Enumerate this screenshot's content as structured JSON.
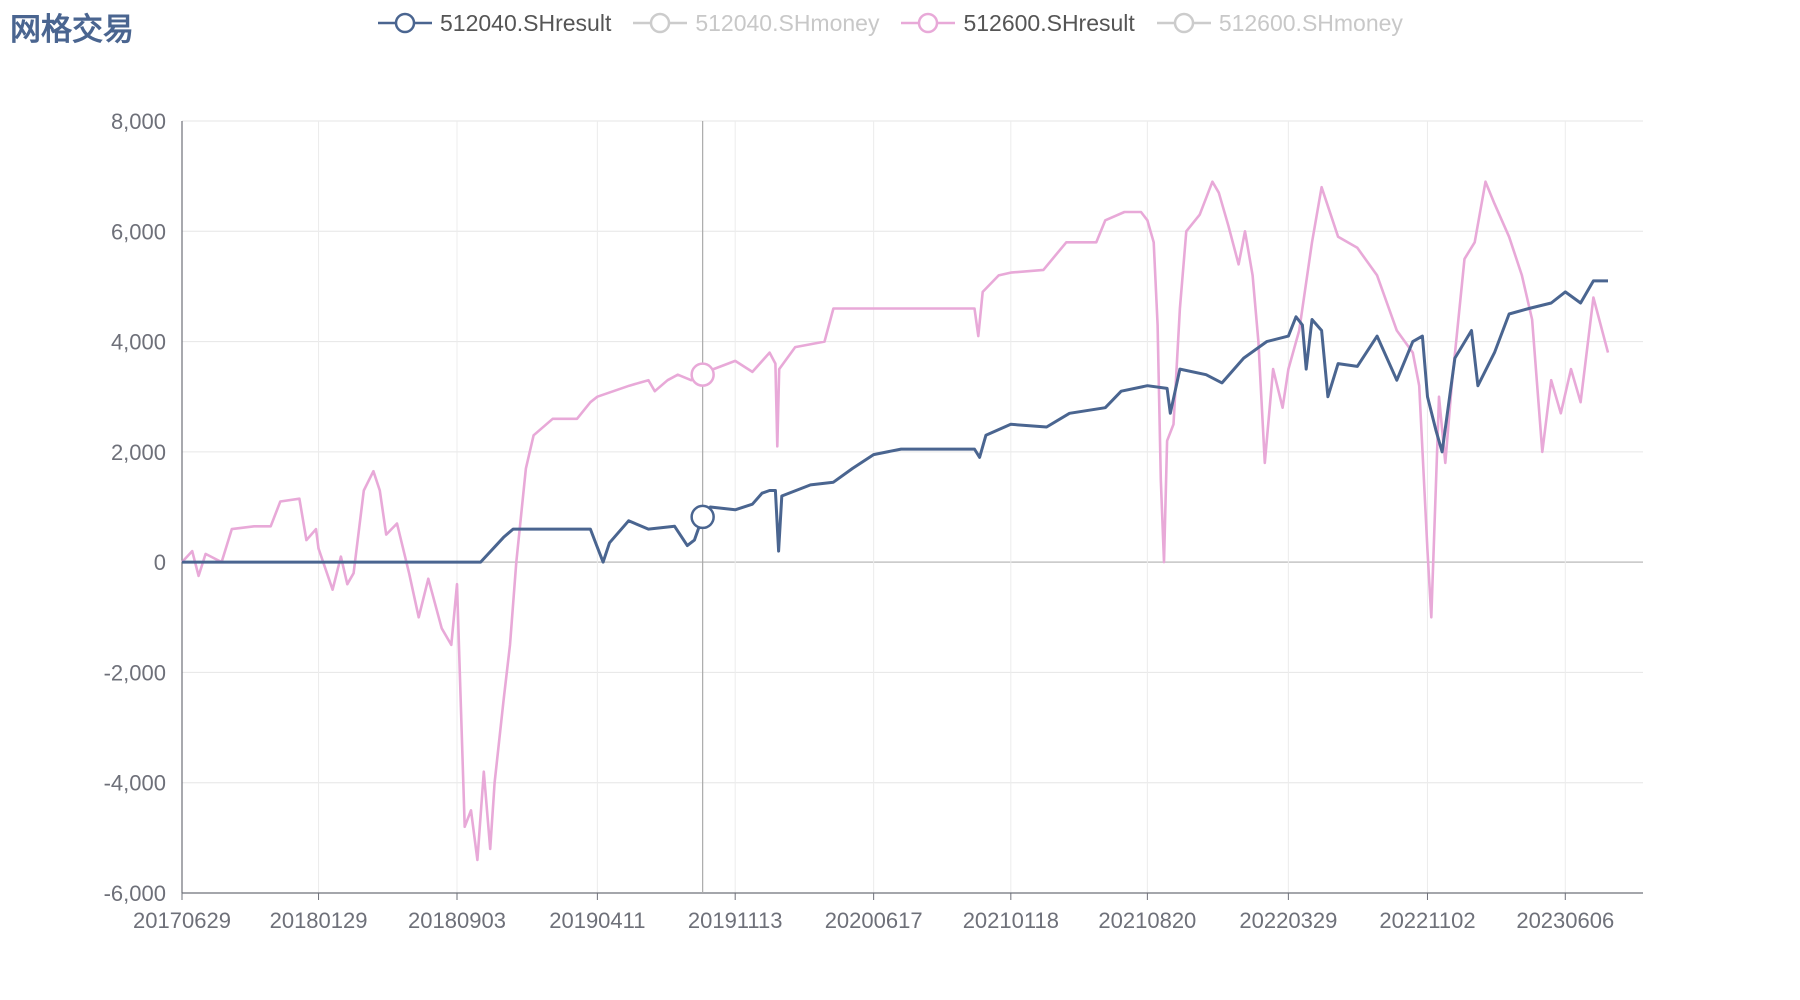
{
  "title": "网格交易",
  "legend": [
    {
      "name": "512040.SHresult",
      "color": "#4a6590",
      "active": true
    },
    {
      "name": "512040.SHmoney",
      "color": "#cccccc",
      "active": false
    },
    {
      "name": "512600.SHresult",
      "color": "#e8a9d8",
      "active": true
    },
    {
      "name": "512600.SHmoney",
      "color": "#cccccc",
      "active": false
    }
  ],
  "chart_data": {
    "type": "line",
    "title": "网格交易",
    "xlabel": "",
    "ylabel": "",
    "categories": [
      "20170629",
      "20180129",
      "20180903",
      "20190411",
      "20191113",
      "20200617",
      "20210118",
      "20210820",
      "20220329",
      "20221102",
      "20230606"
    ],
    "ylim": [
      -6000,
      8000
    ],
    "yticks": [
      "8,000",
      "6,000",
      "4,000",
      "2,000",
      "0",
      "-2,000",
      "-4,000",
      "-6,000"
    ],
    "grid": true,
    "legend_position": "top",
    "tooltip_category": "20190923",
    "series": [
      {
        "name": "512040.SHresult",
        "color": "#4a6590",
        "points": [
          [
            "20170629",
            0
          ],
          [
            "20180903",
            0
          ],
          [
            "20181010",
            0
          ],
          [
            "20181115",
            450
          ],
          [
            "20181130",
            600
          ],
          [
            "20190331",
            600
          ],
          [
            "20190410",
            300
          ],
          [
            "20190420",
            0
          ],
          [
            "20190430",
            350
          ],
          [
            "20190530",
            750
          ],
          [
            "20190630",
            600
          ],
          [
            "20190810",
            650
          ],
          [
            "20190830",
            300
          ],
          [
            "20190910",
            400
          ],
          [
            "20190923",
            820
          ],
          [
            "20191005",
            1000
          ],
          [
            "20191113",
            950
          ],
          [
            "20191210",
            1050
          ],
          [
            "20191225",
            1250
          ],
          [
            "20200106",
            1300
          ],
          [
            "20200115",
            1300
          ],
          [
            "20200120",
            200
          ],
          [
            "20200125",
            1200
          ],
          [
            "20200310",
            1400
          ],
          [
            "20200415",
            1450
          ],
          [
            "20200515",
            1700
          ],
          [
            "20200617",
            1950
          ],
          [
            "20200730",
            2050
          ],
          [
            "20201010",
            2050
          ],
          [
            "20201110",
            2050
          ],
          [
            "20201122",
            2050
          ],
          [
            "20201130",
            1900
          ],
          [
            "20201210",
            2300
          ],
          [
            "20210118",
            2500
          ],
          [
            "20210315",
            2450
          ],
          [
            "20210420",
            2700
          ],
          [
            "20210615",
            2800
          ],
          [
            "20210710",
            3100
          ],
          [
            "20210820",
            3200
          ],
          [
            "20210920",
            3150
          ],
          [
            "20210925",
            2700
          ],
          [
            "20211010",
            3500
          ],
          [
            "20211120",
            3400
          ],
          [
            "20211215",
            3250
          ],
          [
            "20220118",
            3700
          ],
          [
            "20220223",
            4000
          ],
          [
            "20220329",
            4100
          ],
          [
            "20220410",
            4450
          ],
          [
            "20220420",
            4300
          ],
          [
            "20220426",
            3500
          ],
          [
            "20220505",
            4400
          ],
          [
            "20220520",
            4200
          ],
          [
            "20220530",
            3000
          ],
          [
            "20220615",
            3600
          ],
          [
            "20220715",
            3550
          ],
          [
            "20220815",
            4100
          ],
          [
            "20220915",
            3300
          ],
          [
            "20221010",
            4000
          ],
          [
            "20221025",
            4100
          ],
          [
            "20221102",
            3000
          ],
          [
            "20221115",
            2400
          ],
          [
            "20221125",
            2000
          ],
          [
            "20221215",
            3700
          ],
          [
            "20230110",
            4200
          ],
          [
            "20230120",
            3200
          ],
          [
            "20230215",
            3800
          ],
          [
            "20230310",
            4500
          ],
          [
            "20230410",
            4600
          ],
          [
            "20230515",
            4700
          ],
          [
            "20230606",
            4900
          ],
          [
            "20230630",
            4700
          ],
          [
            "20230720",
            5100
          ],
          [
            "20230812",
            5100
          ]
        ]
      },
      {
        "name": "512600.SHresult",
        "color": "#e8a9d8",
        "points": [
          [
            "20170629",
            0
          ],
          [
            "20170715",
            200
          ],
          [
            "20170725",
            -250
          ],
          [
            "20170805",
            150
          ],
          [
            "20170830",
            0
          ],
          [
            "20170915",
            600
          ],
          [
            "20171020",
            650
          ],
          [
            "20171115",
            650
          ],
          [
            "20171130",
            1100
          ],
          [
            "20171230",
            1150
          ],
          [
            "20180110",
            400
          ],
          [
            "20180125",
            600
          ],
          [
            "20180129",
            250
          ],
          [
            "20180220",
            -500
          ],
          [
            "20180305",
            100
          ],
          [
            "20180315",
            -400
          ],
          [
            "20180325",
            -200
          ],
          [
            "20180410",
            1300
          ],
          [
            "20180425",
            1650
          ],
          [
            "20180505",
            1300
          ],
          [
            "20180515",
            500
          ],
          [
            "20180601",
            700
          ],
          [
            "20180620",
            -200
          ],
          [
            "20180705",
            -1000
          ],
          [
            "20180720",
            -300
          ],
          [
            "20180810",
            -1200
          ],
          [
            "20180825",
            -1500
          ],
          [
            "20180903",
            -400
          ],
          [
            "20180915",
            -4800
          ],
          [
            "20180925",
            -4500
          ],
          [
            "20181005",
            -5400
          ],
          [
            "20181015",
            -3800
          ],
          [
            "20181025",
            -5200
          ],
          [
            "20181101",
            -4000
          ],
          [
            "20181115",
            -2500
          ],
          [
            "20181125",
            -1500
          ],
          [
            "20181205",
            0
          ],
          [
            "20181220",
            1700
          ],
          [
            "20190101",
            2300
          ],
          [
            "20190131",
            2600
          ],
          [
            "20190310",
            2600
          ],
          [
            "20190331",
            2900
          ],
          [
            "20190411",
            3000
          ],
          [
            "20190531",
            3200
          ],
          [
            "20190630",
            3300
          ],
          [
            "20190710",
            3100
          ],
          [
            "20190730",
            3300
          ],
          [
            "20190815",
            3400
          ],
          [
            "20190905",
            3300
          ],
          [
            "20190923",
            3400
          ],
          [
            "20191010",
            3500
          ],
          [
            "20191113",
            3650
          ],
          [
            "20191210",
            3450
          ],
          [
            "20200106",
            3800
          ],
          [
            "20200115",
            3600
          ],
          [
            "20200118",
            2100
          ],
          [
            "20200121",
            3500
          ],
          [
            "20200215",
            3900
          ],
          [
            "20200401",
            4000
          ],
          [
            "20200415",
            4600
          ],
          [
            "20200617",
            4600
          ],
          [
            "20201122",
            4600
          ],
          [
            "20201128",
            4100
          ],
          [
            "20201205",
            4900
          ],
          [
            "20201230",
            5200
          ],
          [
            "20210118",
            5250
          ],
          [
            "20210310",
            5300
          ],
          [
            "20210415",
            5800
          ],
          [
            "20210601",
            5800
          ],
          [
            "20210615",
            6200
          ],
          [
            "20210715",
            6350
          ],
          [
            "20210810",
            6350
          ],
          [
            "20210820",
            6200
          ],
          [
            "20210830",
            5800
          ],
          [
            "20210905",
            4300
          ],
          [
            "20210910",
            1500
          ],
          [
            "20210915",
            0
          ],
          [
            "20210920",
            2200
          ],
          [
            "20210930",
            2500
          ],
          [
            "20211010",
            4600
          ],
          [
            "20211020",
            6000
          ],
          [
            "20211110",
            6300
          ],
          [
            "20211130",
            6900
          ],
          [
            "20211210",
            6700
          ],
          [
            "20211225",
            6100
          ],
          [
            "20220110",
            5400
          ],
          [
            "20220120",
            6000
          ],
          [
            "20220201",
            5200
          ],
          [
            "20220210",
            4000
          ],
          [
            "20220220",
            1800
          ],
          [
            "20220305",
            3500
          ],
          [
            "20220320",
            2800
          ],
          [
            "20220329",
            3500
          ],
          [
            "20220415",
            4200
          ],
          [
            "20220505",
            5800
          ],
          [
            "20220520",
            6800
          ],
          [
            "20220615",
            5900
          ],
          [
            "20220715",
            5700
          ],
          [
            "20220815",
            5200
          ],
          [
            "20220915",
            4200
          ],
          [
            "20221010",
            3800
          ],
          [
            "20221020",
            3200
          ],
          [
            "20221102",
            200
          ],
          [
            "20221108",
            -1000
          ],
          [
            "20221120",
            3000
          ],
          [
            "20221130",
            1800
          ],
          [
            "20221210",
            3200
          ],
          [
            "20221230",
            5500
          ],
          [
            "20230115",
            5800
          ],
          [
            "20230201",
            6900
          ],
          [
            "20230215",
            6500
          ],
          [
            "20230310",
            5900
          ],
          [
            "20230330",
            5200
          ],
          [
            "20230415",
            4400
          ],
          [
            "20230501",
            2000
          ],
          [
            "20230515",
            3300
          ],
          [
            "20230530",
            2700
          ],
          [
            "20230615",
            3500
          ],
          [
            "20230630",
            2900
          ],
          [
            "20230720",
            4800
          ],
          [
            "20230812",
            3800
          ]
        ]
      }
    ]
  }
}
